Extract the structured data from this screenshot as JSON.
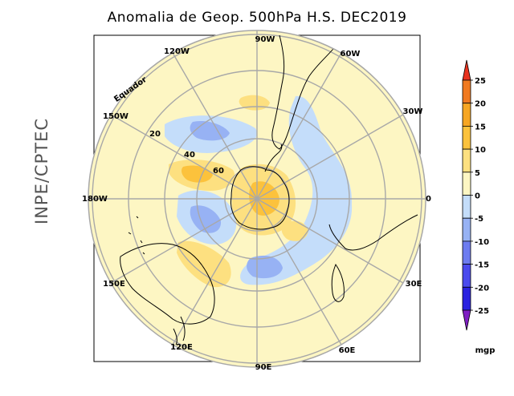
{
  "title": "Anomalia de Geop. 500hPa H.S. DEC2019",
  "sidebar_label": "INPE/CPTEC",
  "map": {
    "projection": "polar stereographic, south pole",
    "longitude_labels": [
      "90W",
      "60W",
      "30W",
      "0",
      "30E",
      "60E",
      "90E",
      "120E",
      "150E",
      "180W",
      "150W",
      "120W"
    ],
    "latitude_labels": [
      "20",
      "40",
      "60"
    ],
    "equator_label": "Equador"
  },
  "colorbar": {
    "unit": "mgp",
    "ticks": [
      "25",
      "20",
      "15",
      "10",
      "5",
      "0",
      "-5",
      "-10",
      "-15",
      "-20",
      "-25"
    ],
    "colors": [
      "#e8331f",
      "#f07a20",
      "#f6a623",
      "#fcc23c",
      "#fde080",
      "#fdf6c3",
      "#c4ddfa",
      "#97b2f4",
      "#6d7cf0",
      "#4a4aee",
      "#2a22e0",
      "#7f1fc3"
    ]
  },
  "anomalies": {
    "description_positive": "geopotential height anomaly > 0 (yellow/orange)",
    "description_negative": "geopotential height anomaly < 0 (blue)"
  }
}
